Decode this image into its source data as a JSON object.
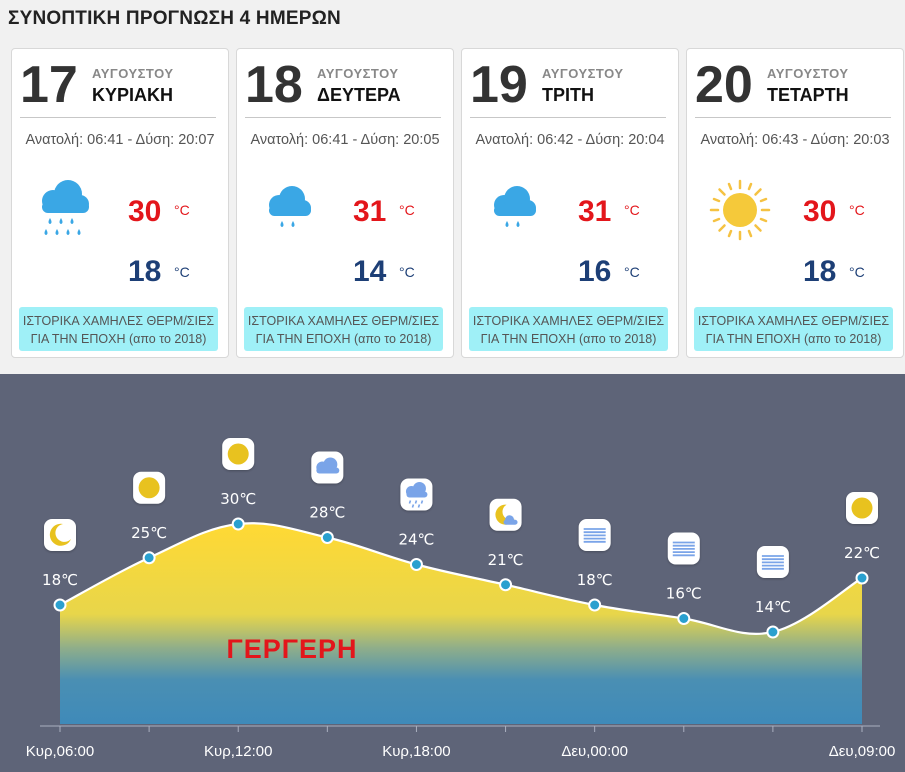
{
  "header": {
    "title": "ΣΥΝΟΠΤΙΚΗ ΠΡΟΓΝΩΣΗ 4 ΗΜΕΡΩΝ"
  },
  "days": [
    {
      "day": "17",
      "month": "ΑΥΓΟΥΣΤΟΥ",
      "weekday": "ΚΥΡΙΑΚΗ",
      "sun": "Ανατολή: 06:41 - Δύση: 20:07",
      "icon": "rain-cloud-icon",
      "tmax": "30",
      "tmin": "18",
      "unit": "°C",
      "hist1": "ΙΣΤΟΡΙΚΑ ΧΑΜΗΛΕΣ ΘΕΡΜ/ΣΙΕΣ",
      "hist2": "ΓΙΑ ΤΗΝ ΕΠΟΧΗ (απο το 2018)"
    },
    {
      "day": "18",
      "month": "ΑΥΓΟΥΣΤΟΥ",
      "weekday": "ΔΕΥΤΕΡΑ",
      "sun": "Ανατολή: 06:41 - Δύση: 20:05",
      "icon": "light-rain-cloud-icon",
      "tmax": "31",
      "tmin": "14",
      "unit": "°C",
      "hist1": "ΙΣΤΟΡΙΚΑ ΧΑΜΗΛΕΣ ΘΕΡΜ/ΣΙΕΣ",
      "hist2": "ΓΙΑ ΤΗΝ ΕΠΟΧΗ (απο το 2018)"
    },
    {
      "day": "19",
      "month": "ΑΥΓΟΥΣΤΟΥ",
      "weekday": "ΤΡΙΤΗ",
      "sun": "Ανατολή: 06:42 - Δύση: 20:04",
      "icon": "light-rain-cloud-icon",
      "tmax": "31",
      "tmin": "16",
      "unit": "°C",
      "hist1": "ΙΣΤΟΡΙΚΑ ΧΑΜΗΛΕΣ ΘΕΡΜ/ΣΙΕΣ",
      "hist2": "ΓΙΑ ΤΗΝ ΕΠΟΧΗ (απο το 2018)"
    },
    {
      "day": "20",
      "month": "ΑΥΓΟΥΣΤΟΥ",
      "weekday": "ΤΕΤΑΡΤΗ",
      "sun": "Ανατολή: 06:43 - Δύση: 20:03",
      "icon": "sun-icon",
      "tmax": "30",
      "tmin": "18",
      "unit": "°C",
      "hist1": "ΙΣΤΟΡΙΚΑ ΧΑΜΗΛΕΣ ΘΕΡΜ/ΣΙΕΣ",
      "hist2": "ΓΙΑ ΤΗΝ ΕΠΟΧΗ (απο το 2018)"
    }
  ],
  "colors": {
    "max": "#e3161b",
    "min": "#1d3f76",
    "hist_bg": "#9ff0f7",
    "chart_bg": "#5e6478",
    "point": "#2aa0cf"
  },
  "chart_data": {
    "type": "area",
    "watermark": "ΓΕΡΓΕΡΗ",
    "x": [
      "Κυρ,06:00",
      "Κυρ,09:00",
      "Κυρ,12:00",
      "Κυρ,15:00",
      "Κυρ,18:00",
      "Κυρ,21:00",
      "Δευ,00:00",
      "Δευ,03:00",
      "Δευ,06:00",
      "Δευ,09:00"
    ],
    "xticks": [
      "Κυρ,06:00",
      "Κυρ,12:00",
      "Κυρ,18:00",
      "Δευ,00:00",
      "Δευ,09:00"
    ],
    "values": [
      18,
      25,
      30,
      28,
      24,
      21,
      18,
      16,
      14,
      22
    ],
    "labels": [
      "18℃",
      "25℃",
      "30℃",
      "28℃",
      "24℃",
      "21℃",
      "18℃",
      "16℃",
      "14℃",
      "22℃"
    ],
    "icons": [
      "moon-icon",
      "sun-icon",
      "sun-icon",
      "cloud-icon",
      "rain-cloud-icon",
      "moon-cloud-icon",
      "fog-icon",
      "fog-icon",
      "fog-icon",
      "sun-icon"
    ],
    "ylim": [
      5,
      35
    ]
  }
}
